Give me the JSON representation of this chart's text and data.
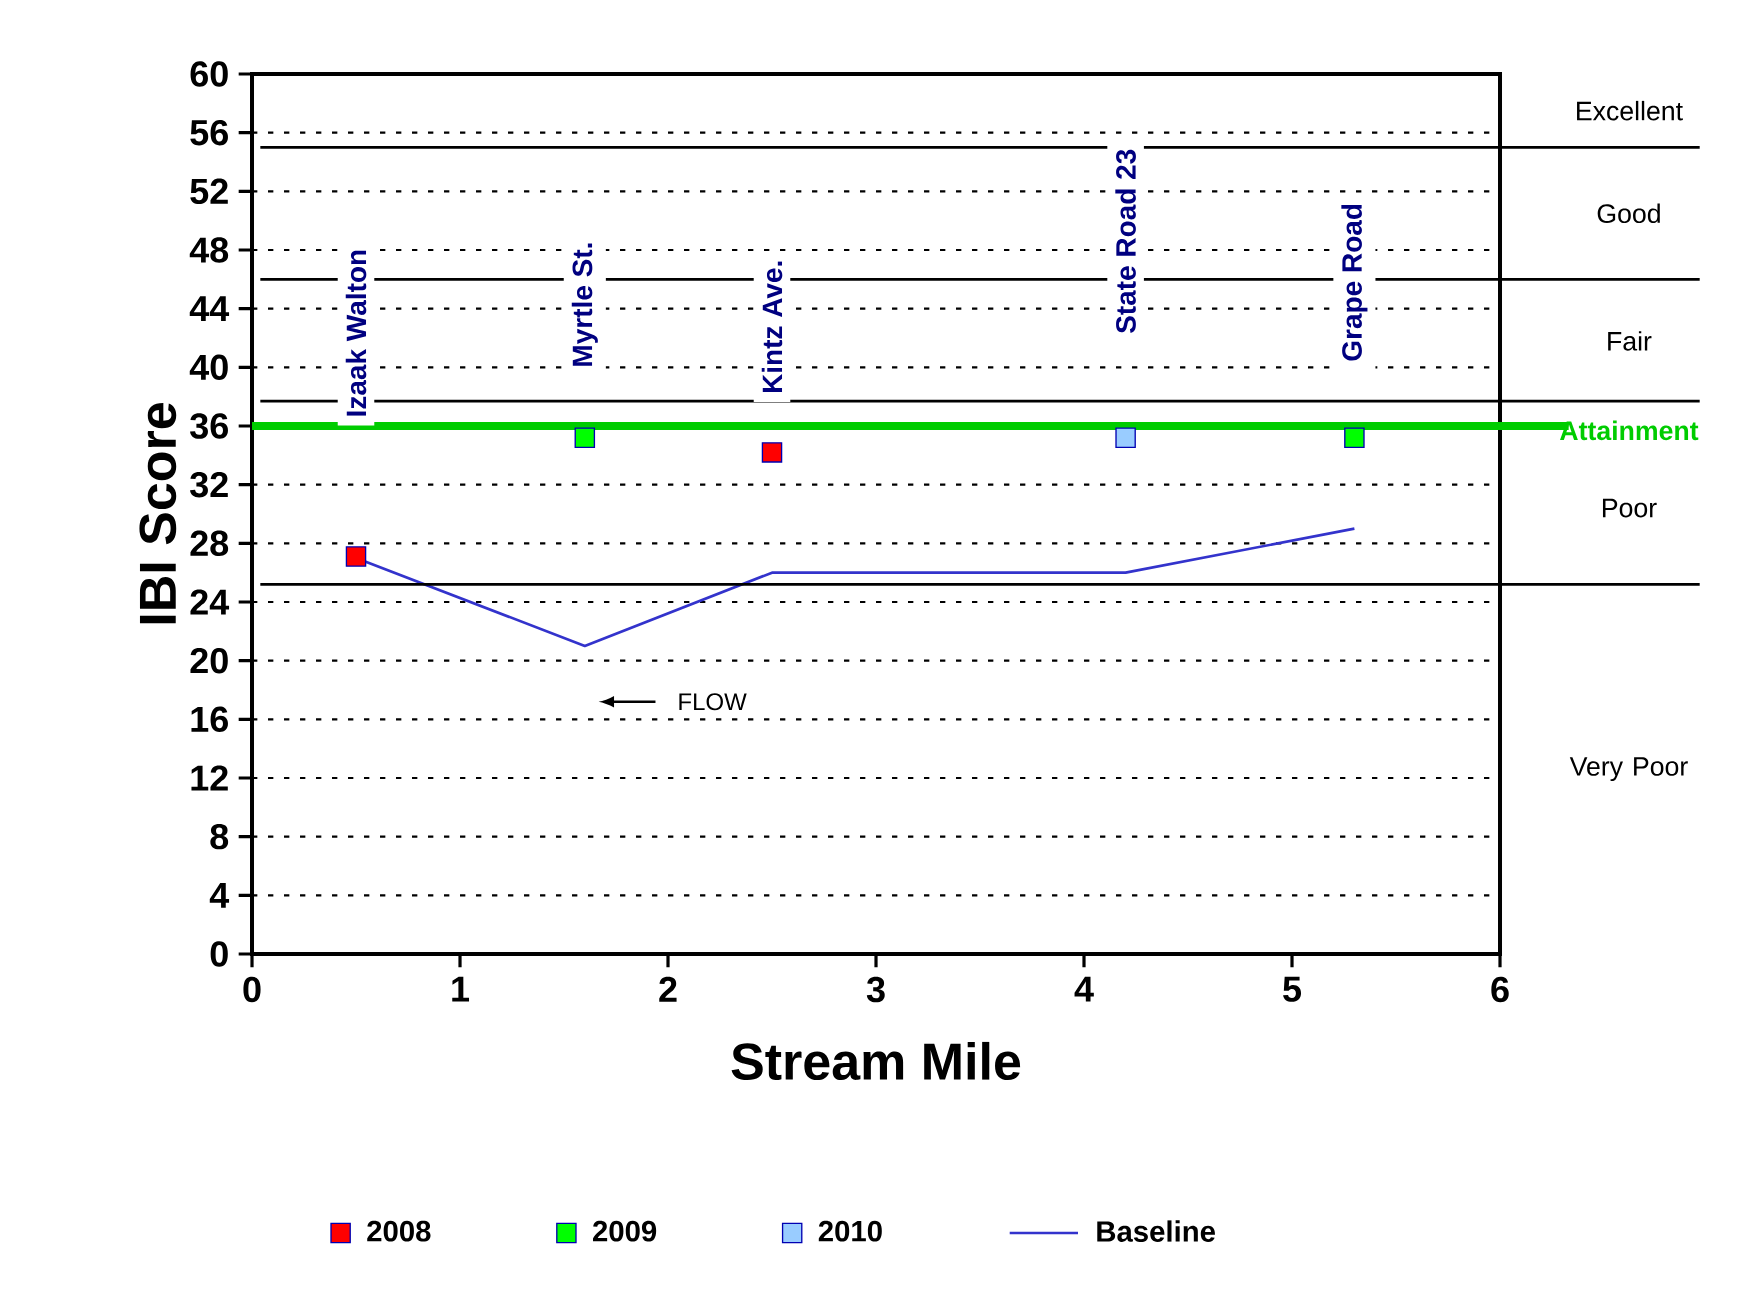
{
  "chart_data": {
    "type": "scatter",
    "xlabel": "Stream Mile",
    "ylabel": "IBI Score",
    "xlim": [
      0,
      6
    ],
    "ylim": [
      0,
      60
    ],
    "xticks": [
      0,
      1,
      2,
      3,
      4,
      5,
      6
    ],
    "yticks": [
      0,
      4,
      8,
      12,
      16,
      20,
      24,
      28,
      32,
      36,
      40,
      44,
      48,
      52,
      56,
      60
    ],
    "grid": "y",
    "legend": "bottom",
    "marker": "square",
    "series": [
      {
        "name": "2008",
        "color": "#ff0000",
        "x": [
          0.5,
          2.5
        ],
        "values": [
          27.1,
          34.2
        ]
      },
      {
        "name": "2009",
        "color": "#00ff00",
        "x": [
          1.6,
          5.3
        ],
        "values": [
          35.2,
          35.2
        ]
      },
      {
        "name": "2010",
        "color": "#99ccff",
        "x": [
          4.2
        ],
        "values": [
          35.2
        ]
      },
      {
        "name": "Baseline",
        "type": "line",
        "color": "#3333cc",
        "marker": "none",
        "x": [
          0.5,
          1.6,
          2.5,
          4.2,
          5.3
        ],
        "values": [
          27,
          21,
          26,
          26,
          29
        ]
      }
    ],
    "ref_lines": [
      {
        "axis": "y",
        "value": 36,
        "label": "Attainment",
        "color": "#00cc00"
      },
      {
        "axis": "y",
        "value": 55,
        "color": "#000000"
      },
      {
        "axis": "y",
        "value": 46,
        "color": "#000000"
      },
      {
        "axis": "y",
        "value": 37.7,
        "color": "#000000"
      },
      {
        "axis": "y",
        "value": 25.2,
        "color": "#000000"
      }
    ],
    "annotations": [
      "Izaak Walton",
      "Myrtle St.",
      "Kintz Ave.",
      "State Road 23",
      "Grape Road",
      "FLOW",
      "Excellent",
      "Good",
      "Fair",
      "Poor",
      "Very Poor"
    ]
  }
}
